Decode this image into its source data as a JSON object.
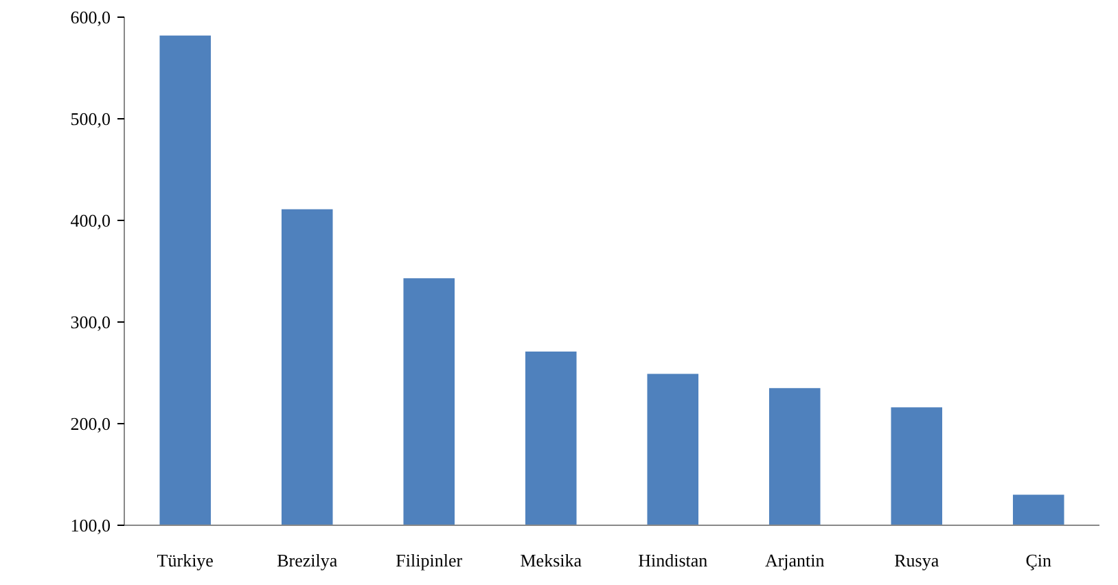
{
  "chart_data": {
    "type": "bar",
    "categories": [
      "Türkiye",
      "Brezilya",
      "Filipinler",
      "Meksika",
      "Hindistan",
      "Arjantin",
      "Rusya",
      "Çin"
    ],
    "values": [
      582,
      411,
      343,
      271,
      249,
      235,
      216,
      130
    ],
    "color": "#4f81bd",
    "ylim": [
      100,
      600
    ],
    "yticks": [
      {
        "value": 100,
        "label": "100,0"
      },
      {
        "value": 200,
        "label": "200,0"
      },
      {
        "value": 300,
        "label": "300,0"
      },
      {
        "value": 400,
        "label": "400,0"
      },
      {
        "value": 500,
        "label": "500,0"
      },
      {
        "value": 600,
        "label": "600,0"
      }
    ],
    "grid": false
  }
}
